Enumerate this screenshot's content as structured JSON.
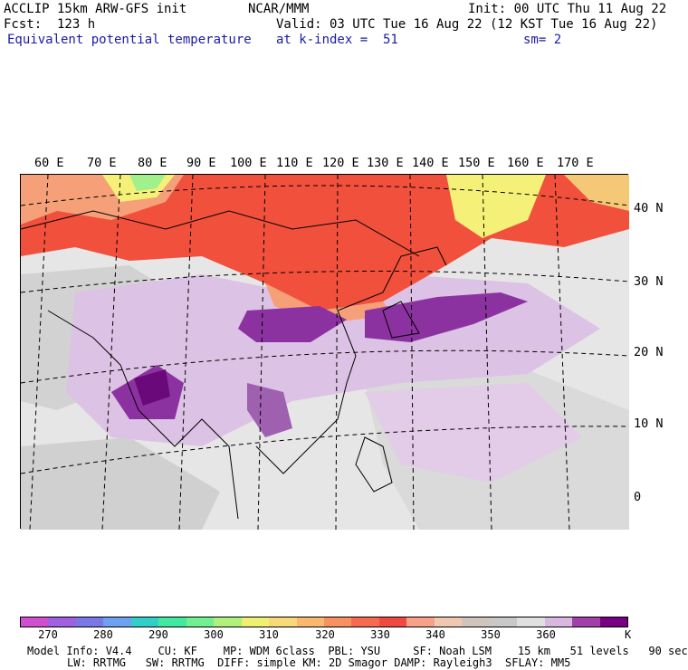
{
  "header": {
    "model": "ACCLIP 15km ARW-GFS init",
    "org": "NCAR/MMM",
    "init": "Init: 00 UTC Thu 11 Aug 22",
    "fcst": "Fcst:  123 h",
    "valid": "Valid: 03 UTC Tue 16 Aug 22 (12 KST Tue 16 Aug 22)",
    "field": "Equivalent potential temperature",
    "level": "at k-index =  51",
    "smooth": "sm= 2"
  },
  "map": {
    "longitude_labels": [
      "60 E",
      "70 E",
      "80 E",
      "90 E",
      "100 E",
      "110 E",
      "120 E",
      "130 E",
      "140 E",
      "150 E",
      "160 E",
      "170 E"
    ],
    "latitude_labels": [
      "40 N",
      "30 N",
      "20 N",
      "10 N",
      "0"
    ],
    "regions": [
      {
        "name": "high-theta-north",
        "color": "#f0503c"
      },
      {
        "name": "warm-band",
        "color": "#f5a078"
      },
      {
        "name": "yellow-patch",
        "color": "#f5f078"
      },
      {
        "name": "green-patch",
        "color": "#a0f08c"
      },
      {
        "name": "low-theta",
        "color": "#d0d0d0"
      },
      {
        "name": "purple-plume",
        "color": "#8c32a0"
      },
      {
        "name": "light-purple",
        "color": "#d8b4e0"
      }
    ]
  },
  "colorbar": {
    "colors": [
      "#d04fd0",
      "#a060e0",
      "#7878e8",
      "#6ca0f0",
      "#30d0c8",
      "#40e8a0",
      "#70f090",
      "#b0f07c",
      "#f0f070",
      "#f8d878",
      "#f8b870",
      "#f89060",
      "#f86a50",
      "#f04a40",
      "#f8a088",
      "#f0c8b0",
      "#d0c4bc",
      "#c8c8c8",
      "#e0e0e0",
      "#d8b8e0",
      "#a040a8",
      "#780080"
    ],
    "tick_labels": [
      "270",
      "280",
      "290",
      "300",
      "310",
      "320",
      "330",
      "340",
      "350",
      "360"
    ],
    "unit": "K"
  },
  "footer": {
    "line1": "Model Info: V4.4    CU: KF    MP: WDM 6class  PBL: YSU     SF: Noah LSM    15 km   51 levels   90 sec",
    "line2": "LW: RRTMG   SW: RRTMG  DIFF: simple KM: 2D Smagor DAMP: Rayleigh3  SFLAY: MM5"
  }
}
